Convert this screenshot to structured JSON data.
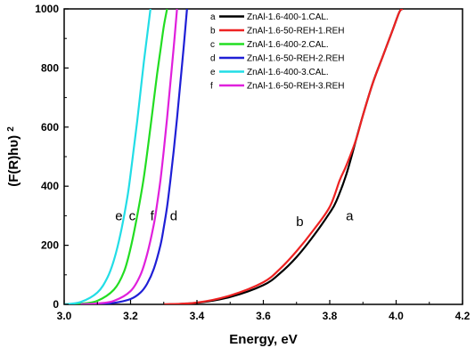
{
  "chart_data": {
    "type": "line",
    "xlabel": "Energy, eV",
    "ylabel": "(F(R)hυ)",
    "ylabel_superscript": "2",
    "xlim": [
      3.0,
      4.2
    ],
    "ylim": [
      0,
      1000
    ],
    "xticks": [
      "3.0",
      "3.2",
      "3.4",
      "3.6",
      "3.8",
      "4.0",
      "4.2"
    ],
    "yticks": [
      "0",
      "200",
      "400",
      "600",
      "800",
      "1000"
    ],
    "legend_position": "top-right",
    "grid": false,
    "series": [
      {
        "tag": "a",
        "name": "ZnAl-1.6-400-1.CAL.",
        "color": "#000000",
        "x": [
          3.3,
          3.4,
          3.5,
          3.6,
          3.65,
          3.7,
          3.75,
          3.8,
          3.82,
          3.85,
          3.88,
          3.9,
          3.93,
          3.96,
          3.99,
          4.01,
          4.02
        ],
        "y": [
          0,
          5,
          25,
          65,
          105,
          160,
          230,
          310,
          350,
          440,
          560,
          640,
          750,
          840,
          930,
          990,
          1000
        ]
      },
      {
        "tag": "b",
        "name": "ZnAl-1.6-50-REH-1.REH",
        "color": "#ee2222",
        "x": [
          3.3,
          3.4,
          3.5,
          3.6,
          3.65,
          3.7,
          3.75,
          3.8,
          3.83,
          3.85,
          3.88,
          3.9,
          3.93,
          3.96,
          3.99,
          4.01,
          4.02
        ],
        "y": [
          0,
          6,
          30,
          75,
          120,
          180,
          250,
          330,
          420,
          470,
          560,
          640,
          750,
          840,
          930,
          990,
          1000
        ]
      },
      {
        "tag": "c",
        "name": "ZnAl-1.6-400-2.CAL.",
        "color": "#22dd22",
        "x": [
          3.0,
          3.05,
          3.1,
          3.15,
          3.18,
          3.2,
          3.22,
          3.24,
          3.26,
          3.27,
          3.28,
          3.29,
          3.3,
          3.31
        ],
        "y": [
          0,
          2,
          12,
          50,
          110,
          190,
          300,
          430,
          600,
          690,
          780,
          860,
          940,
          1000
        ]
      },
      {
        "tag": "d",
        "name": "ZnAl-1.6-50-REH-2.REH",
        "color": "#1f1fd6",
        "x": [
          3.05,
          3.1,
          3.15,
          3.2,
          3.23,
          3.25,
          3.27,
          3.29,
          3.3,
          3.31,
          3.32,
          3.33,
          3.34,
          3.35,
          3.36,
          3.37
        ],
        "y": [
          0,
          1,
          5,
          18,
          40,
          70,
          120,
          200,
          260,
          330,
          420,
          520,
          630,
          750,
          870,
          1000
        ]
      },
      {
        "tag": "e",
        "name": "ZnAl-1.6-400-3.CAL.",
        "color": "#22dde6",
        "x": [
          3.0,
          3.05,
          3.1,
          3.13,
          3.15,
          3.17,
          3.19,
          3.2,
          3.21,
          3.22,
          3.23,
          3.24,
          3.25,
          3.26
        ],
        "y": [
          0,
          8,
          40,
          90,
          150,
          240,
          360,
          440,
          530,
          620,
          720,
          820,
          910,
          1000
        ]
      },
      {
        "tag": "f",
        "name": "ZnAl-1.6-50-REH-3.REH",
        "color": "#e020dc",
        "x": [
          3.05,
          3.1,
          3.15,
          3.2,
          3.23,
          3.25,
          3.27,
          3.28,
          3.29,
          3.3,
          3.31,
          3.32,
          3.33,
          3.34
        ],
        "y": [
          0,
          3,
          12,
          45,
          100,
          170,
          270,
          340,
          420,
          520,
          630,
          750,
          870,
          1000
        ]
      }
    ],
    "annotations": [
      {
        "text": "e",
        "x": 3.165,
        "y": 300
      },
      {
        "text": "c",
        "x": 3.205,
        "y": 300
      },
      {
        "text": "f",
        "x": 3.265,
        "y": 300
      },
      {
        "text": "d",
        "x": 3.33,
        "y": 300
      },
      {
        "text": "b",
        "x": 3.71,
        "y": 280
      },
      {
        "text": "a",
        "x": 3.86,
        "y": 300
      }
    ]
  }
}
